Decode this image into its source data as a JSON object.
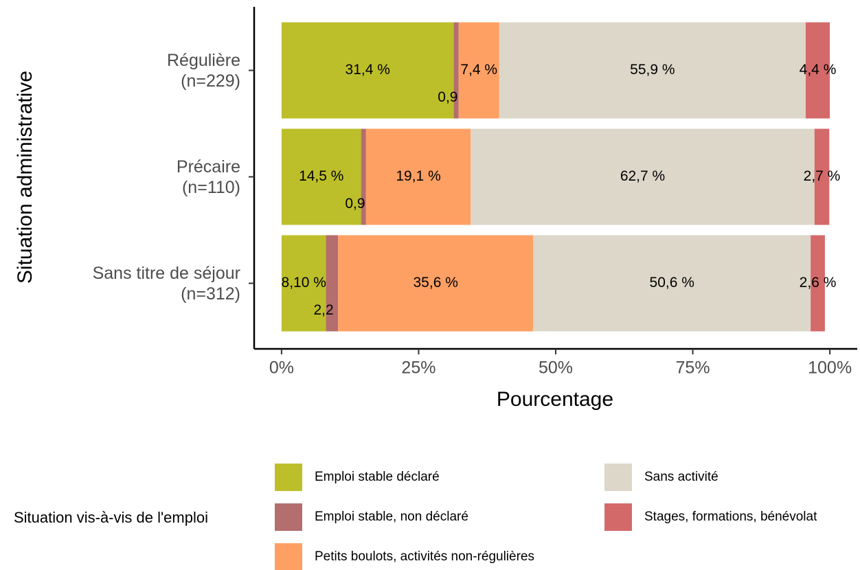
{
  "chart_data": {
    "type": "stacked_barh",
    "y_label": "Situation administrative",
    "x_label": "Pourcentage",
    "legend_title": "Situation vis-à-vis de l'emploi",
    "categories": [
      "Régulière\n(n=229)",
      "Précaire\n(n=110)",
      "Sans titre de séjour\n(n=312)"
    ],
    "series": [
      {
        "name": "Emploi stable déclaré",
        "color": "#bdbf2a",
        "values": [
          31.4,
          14.5,
          8.1
        ],
        "value_labels": [
          "31,4 %",
          "14,5 %",
          "8,10 %"
        ]
      },
      {
        "name": "Emploi stable, non déclaré",
        "color": "#b46e6e",
        "values": [
          0.9,
          0.9,
          2.2
        ],
        "value_labels": [
          "0,9 %",
          "0,9 %",
          "2,2 %"
        ]
      },
      {
        "name": "Petits boulots, activités non-régulières",
        "color": "#fea064",
        "values": [
          7.4,
          19.1,
          35.6
        ],
        "value_labels": [
          "7,4 %",
          "19,1 %",
          "35,6 %"
        ]
      },
      {
        "name": "Sans activité",
        "color": "#dcd7c9",
        "values": [
          55.9,
          62.7,
          50.6
        ],
        "value_labels": [
          "55,9 %",
          "62,7 %",
          "50,6 %"
        ]
      },
      {
        "name": "Stages, formations, bénévolat",
        "color": "#d4696a",
        "values": [
          4.4,
          2.7,
          2.6
        ],
        "value_labels": [
          "4,4 %",
          "2,7 %",
          "2,6 %"
        ]
      }
    ],
    "xlim": [
      -5,
      105
    ],
    "xticks": [
      {
        "value": 0,
        "label": "0%"
      },
      {
        "value": 25,
        "label": "25%"
      },
      {
        "value": 50,
        "label": "50%"
      },
      {
        "value": 75,
        "label": "75%"
      },
      {
        "value": 100,
        "label": "100%"
      }
    ],
    "grid": false,
    "legend_position": "bottom"
  }
}
